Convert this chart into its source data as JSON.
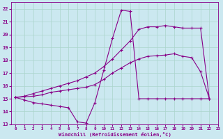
{
  "xlabel": "Windchill (Refroidissement éolien,°C)",
  "bg_color": "#cbe8f0",
  "line_color": "#880088",
  "grid_color": "#aad4cc",
  "xlim": [
    -0.5,
    23
  ],
  "ylim": [
    13,
    22.5
  ],
  "yticks": [
    13,
    14,
    15,
    16,
    17,
    18,
    19,
    20,
    21,
    22
  ],
  "xticks": [
    0,
    1,
    2,
    3,
    4,
    5,
    6,
    7,
    8,
    9,
    10,
    11,
    12,
    13,
    14,
    15,
    16,
    17,
    18,
    19,
    20,
    21,
    22,
    23
  ],
  "line1_x": [
    0,
    1,
    2,
    3,
    4,
    5,
    6,
    7,
    8,
    9,
    10,
    11,
    12,
    13,
    14,
    15,
    16,
    17,
    18,
    19,
    20,
    21,
    22
  ],
  "line1_y": [
    15.1,
    14.9,
    14.7,
    14.6,
    14.5,
    14.4,
    14.3,
    13.2,
    13.1,
    14.7,
    17.2,
    19.7,
    21.9,
    21.8,
    15.0,
    15.0,
    15.0,
    15.0,
    15.0,
    15.0,
    15.0,
    15.0,
    15.0
  ],
  "line2_x": [
    0,
    1,
    2,
    3,
    4,
    5,
    6,
    7,
    8,
    9,
    10,
    11,
    12,
    13,
    14,
    15,
    16,
    17,
    18,
    19,
    20,
    21,
    22
  ],
  "line2_y": [
    15.1,
    15.15,
    15.2,
    15.3,
    15.5,
    15.6,
    15.7,
    15.8,
    15.9,
    16.1,
    16.5,
    17.0,
    17.4,
    17.8,
    18.1,
    18.3,
    18.35,
    18.4,
    18.5,
    18.3,
    18.2,
    17.1,
    15.0
  ],
  "line3_x": [
    0,
    1,
    2,
    3,
    4,
    5,
    6,
    7,
    8,
    9,
    10,
    11,
    12,
    13,
    14,
    15,
    16,
    17,
    18,
    19,
    20,
    21,
    22
  ],
  "line3_y": [
    15.1,
    15.2,
    15.4,
    15.6,
    15.8,
    16.0,
    16.2,
    16.4,
    16.7,
    17.0,
    17.5,
    18.1,
    18.8,
    19.5,
    20.4,
    20.6,
    20.6,
    20.7,
    20.6,
    20.5,
    20.5,
    20.5,
    15.0
  ]
}
